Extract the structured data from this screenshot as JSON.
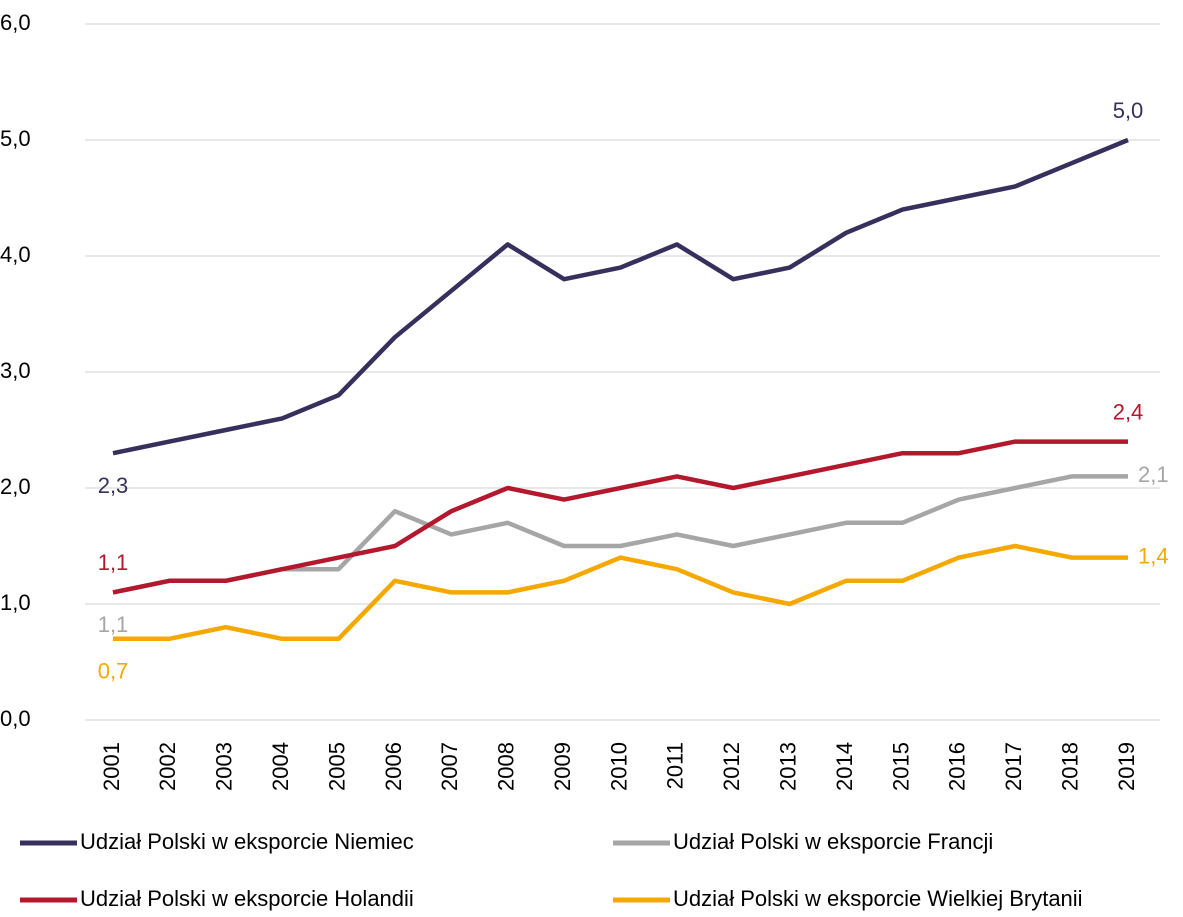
{
  "chart_data": {
    "type": "line",
    "categories": [
      "2001",
      "2002",
      "2003",
      "2004",
      "2005",
      "2006",
      "2007",
      "2008",
      "2009",
      "2010",
      "2011",
      "2012",
      "2013",
      "2014",
      "2015",
      "2016",
      "2017",
      "2018",
      "2019"
    ],
    "series": [
      {
        "name": "Udział Polski w eksporcie Niemiec",
        "color": "#372f5c",
        "values": [
          2.3,
          2.4,
          2.5,
          2.6,
          2.8,
          3.3,
          3.7,
          4.1,
          3.8,
          3.9,
          4.1,
          3.8,
          3.9,
          4.2,
          4.4,
          4.5,
          4.6,
          4.8,
          5.0
        ],
        "value_labels": [
          "2,3",
          null,
          null,
          null,
          null,
          null,
          null,
          null,
          null,
          null,
          null,
          null,
          null,
          null,
          null,
          null,
          null,
          null,
          "5,0"
        ]
      },
      {
        "name": "Udział Polski w eksporcie Francji",
        "color": "#a6a6a6",
        "values": [
          1.1,
          1.2,
          1.2,
          1.3,
          1.3,
          1.8,
          1.6,
          1.7,
          1.5,
          1.5,
          1.6,
          1.5,
          1.6,
          1.7,
          1.7,
          1.9,
          2.0,
          2.1,
          2.1
        ],
        "value_labels": [
          "1,1",
          null,
          null,
          null,
          null,
          null,
          null,
          null,
          null,
          null,
          null,
          null,
          null,
          null,
          null,
          null,
          null,
          null,
          "2,1"
        ]
      },
      {
        "name": "Udział Polski w eksporcie Holandii",
        "color": "#b3182d",
        "values": [
          1.1,
          1.2,
          1.2,
          1.3,
          1.4,
          1.5,
          1.8,
          2.0,
          1.9,
          2.0,
          2.1,
          2.0,
          2.1,
          2.2,
          2.3,
          2.3,
          2.4,
          2.4,
          2.4
        ],
        "value_labels": [
          "1,1",
          null,
          null,
          null,
          null,
          null,
          null,
          null,
          null,
          null,
          null,
          null,
          null,
          null,
          null,
          null,
          null,
          null,
          "2,4"
        ]
      },
      {
        "name": "Udział Polski w eksporcie Wielkiej Brytanii",
        "color": "#f5a800",
        "values": [
          0.7,
          0.7,
          0.8,
          0.7,
          0.7,
          1.2,
          1.1,
          1.1,
          1.2,
          1.4,
          1.3,
          1.1,
          1.0,
          1.2,
          1.2,
          1.4,
          1.5,
          1.4,
          1.4
        ],
        "value_labels": [
          "0,7",
          null,
          null,
          null,
          null,
          null,
          null,
          null,
          null,
          null,
          null,
          null,
          null,
          null,
          null,
          null,
          null,
          null,
          "1,4"
        ]
      }
    ],
    "ylim": [
      0,
      6
    ],
    "yticks": [
      {
        "value": 0,
        "label": "0,0"
      },
      {
        "value": 1,
        "label": "1,0"
      },
      {
        "value": 2,
        "label": "2,0"
      },
      {
        "value": 3,
        "label": "3,0"
      },
      {
        "value": 4,
        "label": "4,0"
      },
      {
        "value": 5,
        "label": "5,0"
      },
      {
        "value": 6,
        "label": "6,0"
      }
    ],
    "grid": true,
    "legend": "bottom"
  }
}
